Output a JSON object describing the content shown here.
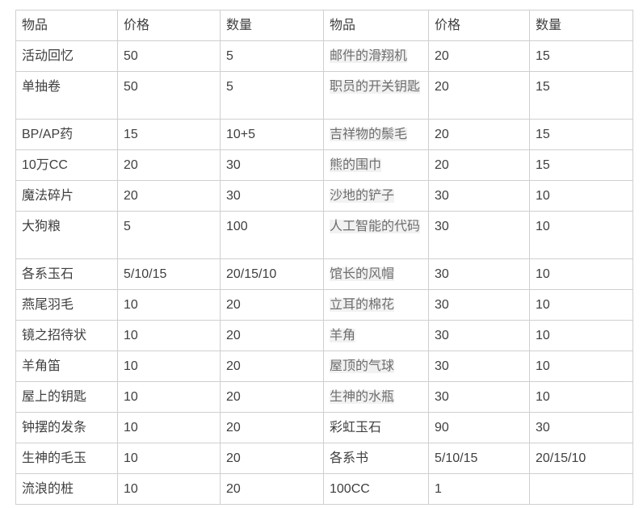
{
  "page": {
    "background": "#ffffff"
  },
  "colors": {
    "border": "#cfcfcf",
    "text": "#3f3f3f",
    "highlight_text": "#6e6e6e",
    "highlight_bg": "#f2f2f2"
  },
  "table": {
    "headers": [
      "物品",
      "价格",
      "数量",
      "物品",
      "价格",
      "数量"
    ],
    "rows": [
      [
        "活动回忆",
        "50",
        "5",
        "邮件的滑翔机",
        "20",
        "15"
      ],
      [
        "单抽卷",
        "50",
        "5",
        "职员的开关钥匙",
        "20",
        "15"
      ],
      [
        "BP/AP药",
        "15",
        "10+5",
        "吉祥物的鬃毛",
        "20",
        "15"
      ],
      [
        "10万CC",
        "20",
        "30",
        "熊的围巾",
        "20",
        "15"
      ],
      [
        "魔法碎片",
        "20",
        "30",
        "沙地的铲子",
        "30",
        "10"
      ],
      [
        "大狗粮",
        "5",
        "100",
        "人工智能的代码",
        "30",
        "10"
      ],
      [
        "各系玉石",
        "5/10/15",
        "20/15/10",
        "馆长的风帽",
        "30",
        "10"
      ],
      [
        "燕尾羽毛",
        "10",
        "20",
        "立耳的棉花",
        "30",
        "10"
      ],
      [
        "镜之招待状",
        "10",
        "20",
        "羊角",
        "30",
        "10"
      ],
      [
        "羊角笛",
        "10",
        "20",
        "屋顶的气球",
        "30",
        "10"
      ],
      [
        "屋上的钥匙",
        "10",
        "20",
        "生神的水瓶",
        "30",
        "10"
      ],
      [
        "钟摆的发条",
        "10",
        "20",
        "彩虹玉石",
        "90",
        "30"
      ],
      [
        "生神的毛玉",
        "10",
        "20",
        "各系书",
        "5/10/15",
        "20/15/10"
      ],
      [
        "流浪的桩",
        "10",
        "20",
        "100CC",
        "1",
        ""
      ]
    ],
    "highlighted_right_item_rows": [
      0,
      1,
      2,
      3,
      4,
      5,
      6,
      7,
      8,
      9,
      10
    ],
    "tall_rows": [
      1,
      5
    ]
  }
}
